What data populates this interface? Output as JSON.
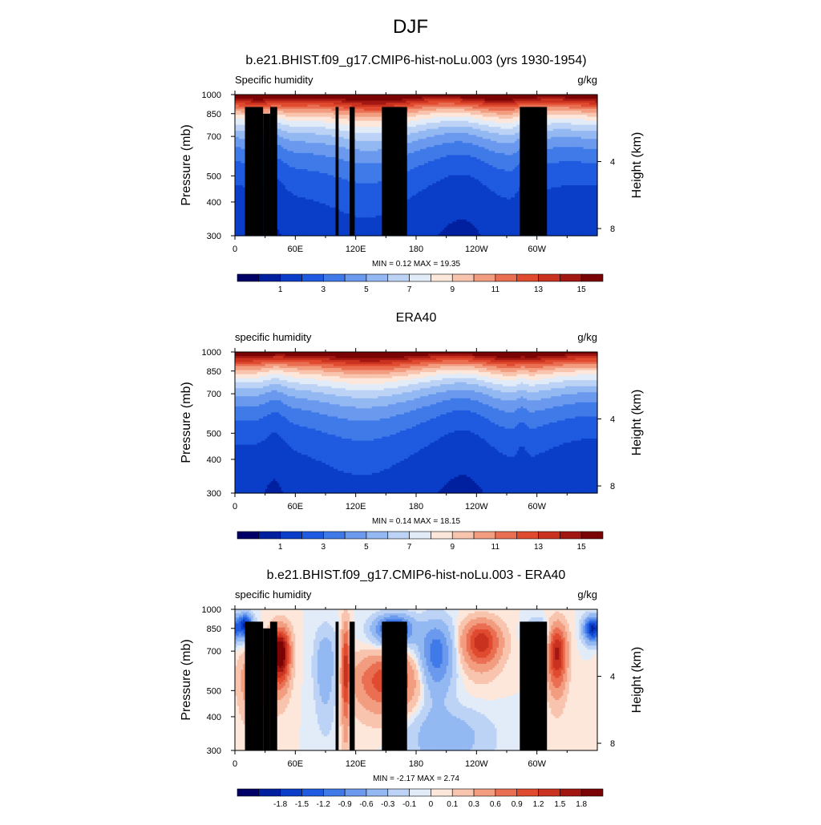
{
  "page_title": "DJF",
  "chart_data": [
    {
      "type": "heatmap",
      "title": "b.e21.BHIST.f09_g17.CMIP6-hist-noLu.003 (yrs 1930-1954)",
      "variable_label": "Specific humidity",
      "units": "g/kg",
      "field": "model",
      "ylabel": "Pressure (mb)",
      "y2label": "Height (km)",
      "xticks": [
        "0",
        "60E",
        "120E",
        "180",
        "120W",
        "60W"
      ],
      "xtick_values": [
        0,
        60,
        120,
        180,
        240,
        300
      ],
      "xlim": [
        0,
        360
      ],
      "yticks": [
        "300",
        "400",
        "500",
        "700",
        "850",
        "1000"
      ],
      "ytick_values": [
        300,
        400,
        500,
        700,
        850,
        1000
      ],
      "ylim": [
        1000,
        300
      ],
      "y2ticks": [
        "8",
        "4"
      ],
      "y2tick_values": [
        8,
        4
      ],
      "stats_text": "MIN =   0.12  MAX =  19.35",
      "stats": {
        "min": 0.12,
        "max": 19.35
      },
      "colorbar_levels": [
        0.5,
        1,
        2,
        3,
        4,
        5,
        6,
        7,
        8,
        9,
        10,
        11,
        12,
        13,
        14,
        15
      ],
      "colorbar_labels": [
        "1",
        "3",
        "5",
        "7",
        "9",
        "11",
        "13",
        "15"
      ],
      "colorbar_colors": [
        "#000066",
        "#0020a0",
        "#0a3ec8",
        "#1f5be0",
        "#3f7ae8",
        "#6a99ee",
        "#93b8f2",
        "#bcd3f6",
        "#e2ecf8",
        "#fde7db",
        "#f8c4ae",
        "#f29c80",
        "#ea6f52",
        "#e04a2f",
        "#c8321f",
        "#a31712",
        "#7a0405"
      ],
      "masked_terrain": true
    },
    {
      "type": "heatmap",
      "title": "ERA40",
      "variable_label": "specific humidity",
      "units": "g/kg",
      "field": "obs",
      "ylabel": "Pressure (mb)",
      "y2label": "Height (km)",
      "xticks": [
        "0",
        "60E",
        "120E",
        "180",
        "120W",
        "60W"
      ],
      "xtick_values": [
        0,
        60,
        120,
        180,
        240,
        300
      ],
      "xlim": [
        0,
        360
      ],
      "yticks": [
        "300",
        "400",
        "500",
        "700",
        "850",
        "1000"
      ],
      "ytick_values": [
        300,
        400,
        500,
        700,
        850,
        1000
      ],
      "ylim": [
        1000,
        300
      ],
      "y2ticks": [
        "8",
        "4"
      ],
      "y2tick_values": [
        8,
        4
      ],
      "stats_text": "MIN =   0.14  MAX =  18.15",
      "stats": {
        "min": 0.14,
        "max": 18.15
      },
      "colorbar_levels": [
        0.5,
        1,
        2,
        3,
        4,
        5,
        6,
        7,
        8,
        9,
        10,
        11,
        12,
        13,
        14,
        15
      ],
      "colorbar_labels": [
        "1",
        "3",
        "5",
        "7",
        "9",
        "11",
        "13",
        "15"
      ],
      "colorbar_colors": [
        "#000066",
        "#0020a0",
        "#0a3ec8",
        "#1f5be0",
        "#3f7ae8",
        "#6a99ee",
        "#93b8f2",
        "#bcd3f6",
        "#e2ecf8",
        "#fde7db",
        "#f8c4ae",
        "#f29c80",
        "#ea6f52",
        "#e04a2f",
        "#c8321f",
        "#a31712",
        "#7a0405"
      ],
      "masked_terrain": false
    },
    {
      "type": "heatmap",
      "title": "b.e21.BHIST.f09_g17.CMIP6-hist-noLu.003 - ERA40",
      "variable_label": "specific humidity",
      "units": "g/kg",
      "field": "diff",
      "ylabel": "Pressure (mb)",
      "y2label": "Height (km)",
      "xticks": [
        "0",
        "60E",
        "120E",
        "180",
        "120W",
        "60W"
      ],
      "xtick_values": [
        0,
        60,
        120,
        180,
        240,
        300
      ],
      "xlim": [
        0,
        360
      ],
      "yticks": [
        "300",
        "400",
        "500",
        "700",
        "850",
        "1000"
      ],
      "ytick_values": [
        300,
        400,
        500,
        700,
        850,
        1000
      ],
      "ylim": [
        1000,
        300
      ],
      "y2ticks": [
        "8",
        "4"
      ],
      "y2tick_values": [
        8,
        4
      ],
      "stats_text": "MIN =  -2.17  MAX =   2.74",
      "stats": {
        "min": -2.17,
        "max": 2.74
      },
      "colorbar_levels": [
        -2.1,
        -1.8,
        -1.5,
        -1.2,
        -0.9,
        -0.6,
        -0.3,
        -0.1,
        0,
        0.1,
        0.3,
        0.6,
        0.9,
        1.2,
        1.5,
        1.8
      ],
      "colorbar_labels": [
        "-1.8",
        "-1.5",
        "-1.2",
        "-0.9",
        "-0.6",
        "-0.3",
        "-0.1",
        "0",
        "0.1",
        "0.3",
        "0.6",
        "0.9",
        "1.2",
        "1.5",
        "1.8"
      ],
      "colorbar_colors": [
        "#000066",
        "#0020a0",
        "#0a3ec8",
        "#1f5be0",
        "#3f7ae8",
        "#6a99ee",
        "#93b8f2",
        "#bcd3f6",
        "#e2ecf8",
        "#fde7db",
        "#f8c4ae",
        "#f29c80",
        "#ea6f52",
        "#e04a2f",
        "#c8321f",
        "#a31712",
        "#7a0405"
      ],
      "masked_terrain": true
    }
  ]
}
